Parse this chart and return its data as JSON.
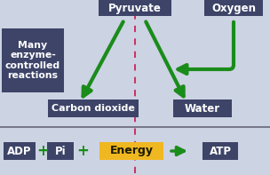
{
  "bg_color": "#ccd3e3",
  "box_color": "#3d4468",
  "box_text_color": "#ffffff",
  "arrow_color": "#1a8c1a",
  "dashed_line_color": "#cc2255",
  "energy_box_color": "#f0b820",
  "energy_text_color": "#1a1a00",
  "separator_color": "#666677",
  "pyruvate": "Pyruvate",
  "oxygen": "Oxygen",
  "many_reactions": "Many\nenzyme-\ncontrolled\nreactions",
  "carbon_dioxide": "Carbon dioxide",
  "water": "Water",
  "adp": "ADP",
  "pi": "Pi",
  "energy": "Energy",
  "atp": "ATP",
  "plus_color": "#1a8c1a",
  "figsize": [
    3.04,
    1.97
  ],
  "dpi": 100
}
